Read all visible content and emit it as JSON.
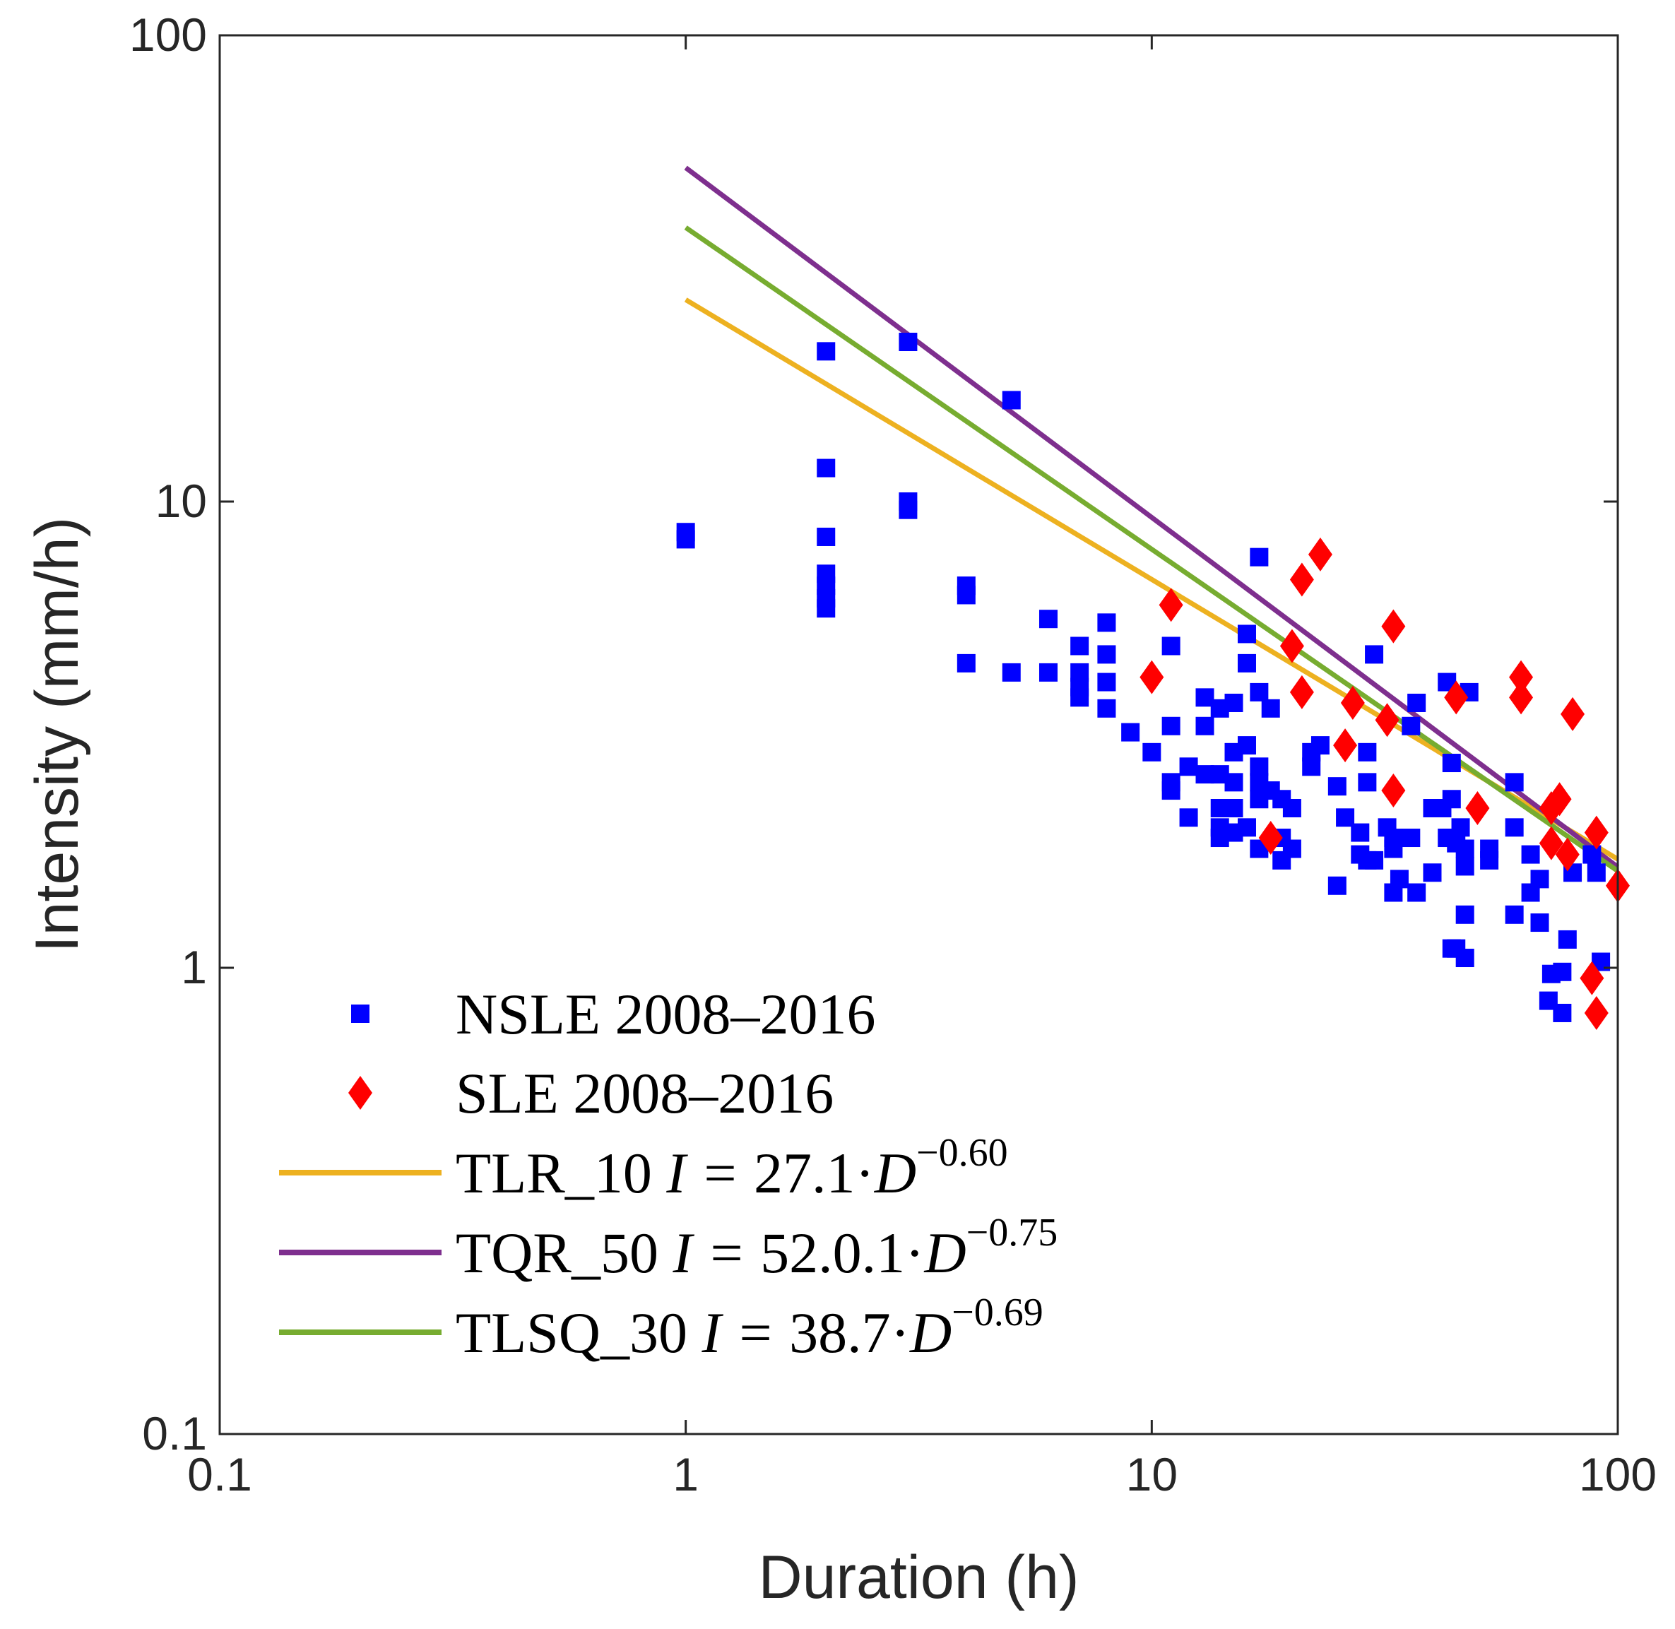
{
  "chart_data": {
    "type": "scatter",
    "xlabel": "Duration (h)",
    "ylabel": "Intensity (mm/h)",
    "xscale": "log",
    "yscale": "log",
    "xlim": [
      0.1,
      100
    ],
    "ylim": [
      0.1,
      100
    ],
    "xticks": [
      {
        "value": 0.1,
        "label": "0.1"
      },
      {
        "value": 1,
        "label": "1"
      },
      {
        "value": 10,
        "label": "10"
      },
      {
        "value": 100,
        "label": "100"
      }
    ],
    "yticks": [
      {
        "value": 0.1,
        "label": "0.1"
      },
      {
        "value": 1,
        "label": "1"
      },
      {
        "value": 10,
        "label": "10"
      },
      {
        "value": 100,
        "label": "100"
      }
    ],
    "legend_position": "bottom-left",
    "series": [
      {
        "name": "NSLE 2008–2016",
        "kind": "points",
        "marker": "square",
        "color": "#0000ff",
        "points": [
          [
            1,
            8.3
          ],
          [
            1,
            8.6
          ],
          [
            2,
            21
          ],
          [
            2,
            11.8
          ],
          [
            2,
            8.4
          ],
          [
            2,
            7.0
          ],
          [
            2,
            6.6
          ],
          [
            2,
            6.2
          ],
          [
            2,
            5.9
          ],
          [
            3,
            22
          ],
          [
            3,
            9.6
          ],
          [
            3,
            10
          ],
          [
            4,
            6.6
          ],
          [
            4,
            6.3
          ],
          [
            4,
            4.5
          ],
          [
            5,
            16.5
          ],
          [
            5,
            4.3
          ],
          [
            6,
            5.6
          ],
          [
            6,
            4.3
          ],
          [
            7,
            4.9
          ],
          [
            7,
            4.3
          ],
          [
            7,
            4.0
          ],
          [
            7,
            3.8
          ],
          [
            8,
            5.5
          ],
          [
            8,
            4.7
          ],
          [
            8,
            4.1
          ],
          [
            8,
            3.6
          ],
          [
            9,
            3.2
          ],
          [
            10,
            2.9
          ],
          [
            11,
            4.9
          ],
          [
            11,
            3.3
          ],
          [
            11,
            2.5
          ],
          [
            11,
            2.4
          ],
          [
            12,
            2.7
          ],
          [
            12,
            2.1
          ],
          [
            13,
            3.8
          ],
          [
            13,
            3.3
          ],
          [
            13,
            2.6
          ],
          [
            14,
            3.6
          ],
          [
            14,
            2.6
          ],
          [
            14,
            2.2
          ],
          [
            14,
            2.0
          ],
          [
            14,
            1.9
          ],
          [
            15,
            3.7
          ],
          [
            15,
            2.9
          ],
          [
            15,
            2.5
          ],
          [
            15,
            2.2
          ],
          [
            15,
            1.95
          ],
          [
            16,
            5.2
          ],
          [
            16,
            4.5
          ],
          [
            16,
            3.0
          ],
          [
            16,
            2.0
          ],
          [
            17,
            7.6
          ],
          [
            17,
            3.9
          ],
          [
            17,
            2.7
          ],
          [
            17,
            2.5
          ],
          [
            17,
            2.3
          ],
          [
            17,
            1.8
          ],
          [
            18,
            3.6
          ],
          [
            18,
            2.4
          ],
          [
            19,
            2.3
          ],
          [
            19,
            1.7
          ],
          [
            19,
            1.9
          ],
          [
            20,
            2.2
          ],
          [
            20,
            1.8
          ],
          [
            22,
            2.7
          ],
          [
            22,
            2.9
          ],
          [
            23,
            3.0
          ],
          [
            25,
            2.45
          ],
          [
            25,
            1.5
          ],
          [
            26,
            2.1
          ],
          [
            28,
            1.95
          ],
          [
            28,
            1.75
          ],
          [
            29,
            2.9
          ],
          [
            29,
            2.5
          ],
          [
            29,
            1.7
          ],
          [
            30,
            4.7
          ],
          [
            30,
            1.7
          ],
          [
            32,
            2.0
          ],
          [
            33,
            1.9
          ],
          [
            33,
            1.8
          ],
          [
            33,
            1.45
          ],
          [
            34,
            1.55
          ],
          [
            36,
            3.3
          ],
          [
            36,
            1.9
          ],
          [
            37,
            3.7
          ],
          [
            37,
            1.45
          ],
          [
            40,
            2.2
          ],
          [
            40,
            1.6
          ],
          [
            42,
            2.2
          ],
          [
            43,
            4.1
          ],
          [
            43,
            1.9
          ],
          [
            44,
            2.75
          ],
          [
            44,
            2.3
          ],
          [
            44,
            1.9
          ],
          [
            44,
            1.1
          ],
          [
            45,
            1.85
          ],
          [
            45,
            1.1
          ],
          [
            46,
            2.0
          ],
          [
            47,
            1.8
          ],
          [
            47,
            1.65
          ],
          [
            47,
            1.05
          ],
          [
            47,
            1.3
          ],
          [
            48,
            3.9
          ],
          [
            53,
            1.8
          ],
          [
            53,
            1.7
          ],
          [
            60,
            2.5
          ],
          [
            60,
            2.0
          ],
          [
            60,
            1.3
          ],
          [
            65,
            1.75
          ],
          [
            65,
            1.45
          ],
          [
            68,
            1.55
          ],
          [
            68,
            1.25
          ],
          [
            71,
            0.85
          ],
          [
            72,
            0.97
          ],
          [
            76,
            0.98
          ],
          [
            76,
            0.8
          ],
          [
            78,
            1.15
          ],
          [
            80,
            1.6
          ],
          [
            88,
            1.75
          ],
          [
            90,
            1.6
          ],
          [
            92,
            1.03
          ]
        ]
      },
      {
        "name": "SLE 2008–2016",
        "kind": "points",
        "marker": "diamond",
        "color": "#ff0000",
        "points": [
          [
            10,
            4.2
          ],
          [
            11,
            6.0
          ],
          [
            18,
            1.9
          ],
          [
            20,
            4.9
          ],
          [
            21,
            6.8
          ],
          [
            21,
            3.9
          ],
          [
            23,
            7.7
          ],
          [
            26,
            3.0
          ],
          [
            27,
            3.7
          ],
          [
            32,
            3.4
          ],
          [
            33,
            2.4
          ],
          [
            33,
            5.4
          ],
          [
            45,
            3.8
          ],
          [
            50,
            2.2
          ],
          [
            62,
            4.2
          ],
          [
            62,
            3.8
          ],
          [
            72,
            1.85
          ],
          [
            72,
            2.2
          ],
          [
            75,
            2.3
          ],
          [
            78,
            1.75
          ],
          [
            80,
            3.5
          ],
          [
            88,
            0.95
          ],
          [
            90,
            1.95
          ],
          [
            90,
            0.8
          ],
          [
            100,
            1.5
          ]
        ]
      },
      {
        "name": "TLR_10",
        "equation_prefix": "I =",
        "coefficient": "27.1",
        "exponent": "−0.60",
        "kind": "line",
        "color": "#edb120",
        "a": 27.1,
        "b": -0.6,
        "x_range": [
          1,
          100
        ]
      },
      {
        "name": "TQR_50",
        "equation_prefix": "I =",
        "coefficient": "52.0.1",
        "exponent": "−0.75",
        "kind": "line",
        "color": "#7e2f8e",
        "a": 52.0,
        "b": -0.75,
        "x_range": [
          1,
          100
        ]
      },
      {
        "name": "TLSQ_30",
        "equation_prefix": "I =",
        "coefficient": "38.7",
        "exponent": "−0.69",
        "kind": "line",
        "color": "#77ac30",
        "a": 38.7,
        "b": -0.69,
        "x_range": [
          1,
          100
        ]
      }
    ]
  }
}
